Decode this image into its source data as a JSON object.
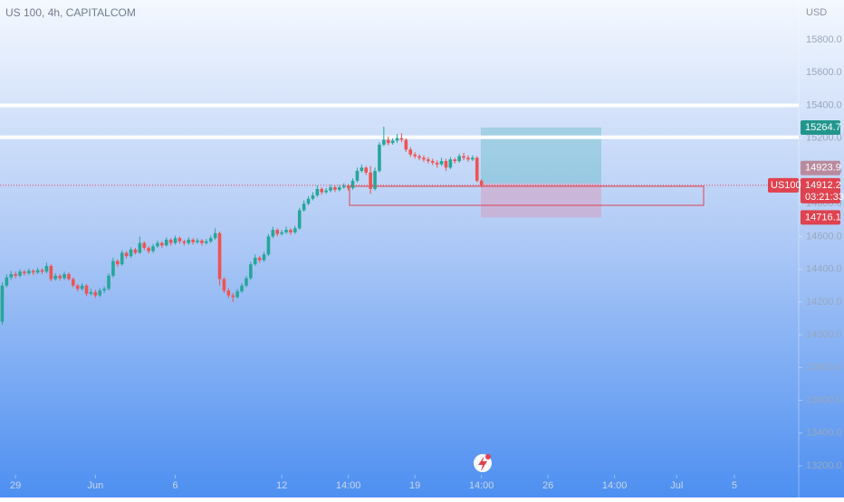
{
  "chart_data": {
    "type": "candlestick",
    "title": "US 100, 4h, CAPITALCOM",
    "currency": "USD",
    "countdown": "03:21:33",
    "xlim": [
      -0.5,
      179.5
    ],
    "xticks": [
      {
        "value": 3,
        "label": "29"
      },
      {
        "value": 21,
        "label": "Jun"
      },
      {
        "value": 39,
        "label": "6"
      },
      {
        "value": 63,
        "label": "12"
      },
      {
        "value": 78,
        "label": "14:00"
      },
      {
        "value": 93,
        "label": "19"
      },
      {
        "value": 108,
        "label": "14:00"
      },
      {
        "value": 123,
        "label": "26"
      },
      {
        "value": 138,
        "label": "14:00"
      },
      {
        "value": 152,
        "label": "Jul"
      },
      {
        "value": 165,
        "label": "5"
      }
    ],
    "ylim": [
      13145,
      16043
    ],
    "yticks": [
      {
        "value": 13200,
        "label": "13200.0"
      },
      {
        "value": 13400,
        "label": "13400.0"
      },
      {
        "value": 13600,
        "label": "13600.0"
      },
      {
        "value": 13800,
        "label": "13800.0"
      },
      {
        "value": 14000,
        "label": "14000.0"
      },
      {
        "value": 14200,
        "label": "14200.0"
      },
      {
        "value": 14400,
        "label": "14400.0"
      },
      {
        "value": 14600,
        "label": "14600.0"
      },
      {
        "value": 14800,
        "label": "14800.0"
      },
      {
        "value": 15000,
        "label": "15000.0"
      },
      {
        "value": 15200,
        "label": "15200.0"
      },
      {
        "value": 15400,
        "label": "15400.0"
      },
      {
        "value": 15600,
        "label": "15600.0"
      },
      {
        "value": 15800,
        "label": "15800.0"
      }
    ],
    "up_color": "#26a69a",
    "down_color": "#ef5350",
    "horizontal_lines": [
      15400,
      15205
    ],
    "zone": [
      14790,
      14906
    ],
    "position": {
      "target": 15264.7,
      "entry": 14923.9,
      "stop": 14716.1
    },
    "series": [
      {
        "name": "US100",
        "ohlc": [
          [
            14080,
            14320,
            14060,
            14300
          ],
          [
            14300,
            14370,
            14290,
            14350
          ],
          [
            14350,
            14390,
            14335,
            14370
          ],
          [
            14370,
            14385,
            14345,
            14360
          ],
          [
            14360,
            14400,
            14350,
            14385
          ],
          [
            14385,
            14395,
            14360,
            14375
          ],
          [
            14375,
            14405,
            14365,
            14390
          ],
          [
            14390,
            14400,
            14365,
            14380
          ],
          [
            14380,
            14410,
            14370,
            14395
          ],
          [
            14395,
            14405,
            14370,
            14385
          ],
          [
            14385,
            14440,
            14375,
            14420
          ],
          [
            14420,
            14430,
            14325,
            14340
          ],
          [
            14340,
            14375,
            14330,
            14360
          ],
          [
            14360,
            14370,
            14330,
            14345
          ],
          [
            14345,
            14385,
            14335,
            14370
          ],
          [
            14370,
            14380,
            14330,
            14340
          ],
          [
            14340,
            14350,
            14290,
            14300
          ],
          [
            14300,
            14310,
            14265,
            14280
          ],
          [
            14280,
            14315,
            14270,
            14300
          ],
          [
            14300,
            14310,
            14235,
            14250
          ],
          [
            14250,
            14280,
            14240,
            14260
          ],
          [
            14260,
            14275,
            14225,
            14240
          ],
          [
            14240,
            14285,
            14230,
            14270
          ],
          [
            14270,
            14295,
            14255,
            14280
          ],
          [
            14280,
            14375,
            14270,
            14360
          ],
          [
            14360,
            14470,
            14350,
            14450
          ],
          [
            14450,
            14460,
            14415,
            14430
          ],
          [
            14430,
            14515,
            14420,
            14500
          ],
          [
            14500,
            14510,
            14465,
            14480
          ],
          [
            14480,
            14535,
            14470,
            14520
          ],
          [
            14520,
            14530,
            14490,
            14500
          ],
          [
            14500,
            14600,
            14495,
            14560
          ],
          [
            14560,
            14570,
            14515,
            14530
          ],
          [
            14530,
            14540,
            14495,
            14510
          ],
          [
            14510,
            14555,
            14500,
            14540
          ],
          [
            14540,
            14575,
            14530,
            14560
          ],
          [
            14560,
            14570,
            14530,
            14545
          ],
          [
            14545,
            14595,
            14540,
            14580
          ],
          [
            14580,
            14590,
            14545,
            14560
          ],
          [
            14560,
            14605,
            14550,
            14590
          ],
          [
            14590,
            14600,
            14555,
            14570
          ],
          [
            14570,
            14580,
            14545,
            14560
          ],
          [
            14560,
            14595,
            14550,
            14580
          ],
          [
            14580,
            14590,
            14550,
            14565
          ],
          [
            14565,
            14590,
            14555,
            14575
          ],
          [
            14575,
            14585,
            14545,
            14560
          ],
          [
            14560,
            14585,
            14550,
            14570
          ],
          [
            14570,
            14605,
            14560,
            14590
          ],
          [
            14590,
            14650,
            14580,
            14620
          ],
          [
            14620,
            14630,
            14300,
            14340
          ],
          [
            14340,
            14350,
            14255,
            14270
          ],
          [
            14270,
            14285,
            14225,
            14240
          ],
          [
            14240,
            14255,
            14200,
            14230
          ],
          [
            14230,
            14280,
            14220,
            14265
          ],
          [
            14265,
            14315,
            14255,
            14300
          ],
          [
            14300,
            14360,
            14290,
            14345
          ],
          [
            14345,
            14445,
            14335,
            14430
          ],
          [
            14430,
            14490,
            14420,
            14470
          ],
          [
            14470,
            14480,
            14440,
            14455
          ],
          [
            14455,
            14505,
            14445,
            14490
          ],
          [
            14490,
            14615,
            14480,
            14600
          ],
          [
            14600,
            14660,
            14590,
            14640
          ],
          [
            14640,
            14650,
            14600,
            14615
          ],
          [
            14615,
            14640,
            14605,
            14625
          ],
          [
            14625,
            14660,
            14615,
            14640
          ],
          [
            14640,
            14650,
            14610,
            14625
          ],
          [
            14625,
            14665,
            14615,
            14650
          ],
          [
            14650,
            14775,
            14640,
            14760
          ],
          [
            14760,
            14820,
            14750,
            14800
          ],
          [
            14800,
            14845,
            14790,
            14830
          ],
          [
            14830,
            14870,
            14820,
            14850
          ],
          [
            14850,
            14910,
            14840,
            14890
          ],
          [
            14890,
            14900,
            14855,
            14870
          ],
          [
            14870,
            14895,
            14860,
            14880
          ],
          [
            14880,
            14915,
            14870,
            14900
          ],
          [
            14900,
            14910,
            14870,
            14885
          ],
          [
            14885,
            14915,
            14875,
            14900
          ],
          [
            14900,
            14925,
            14890,
            14910
          ],
          [
            14910,
            14920,
            14880,
            14895
          ],
          [
            14895,
            14955,
            14885,
            14940
          ],
          [
            14940,
            15020,
            14930,
            15000
          ],
          [
            15000,
            15040,
            14990,
            15020
          ],
          [
            15020,
            15030,
            14975,
            14990
          ],
          [
            14990,
            15030,
            14860,
            14890
          ],
          [
            14890,
            15020,
            14880,
            15000
          ],
          [
            15000,
            15175,
            14990,
            15160
          ],
          [
            15160,
            15270,
            15150,
            15190
          ],
          [
            15190,
            15210,
            15155,
            15170
          ],
          [
            15170,
            15200,
            15160,
            15185
          ],
          [
            15185,
            15225,
            15170,
            15200
          ],
          [
            15200,
            15230,
            15175,
            15190
          ],
          [
            15190,
            15200,
            15115,
            15130
          ],
          [
            15130,
            15145,
            15085,
            15100
          ],
          [
            15100,
            15115,
            15075,
            15090
          ],
          [
            15090,
            15100,
            15065,
            15080
          ],
          [
            15080,
            15095,
            15055,
            15070
          ],
          [
            15070,
            15085,
            15045,
            15060
          ],
          [
            15060,
            15075,
            15035,
            15050
          ],
          [
            15050,
            15065,
            15020,
            15040
          ],
          [
            15040,
            15080,
            15030,
            15060
          ],
          [
            15060,
            15075,
            15000,
            15020
          ],
          [
            15020,
            15085,
            15010,
            15070
          ],
          [
            15070,
            15080,
            15045,
            15060
          ],
          [
            15060,
            15105,
            15050,
            15090
          ],
          [
            15090,
            15110,
            15065,
            15080
          ],
          [
            15080,
            15095,
            15055,
            15070
          ],
          [
            15070,
            15095,
            15060,
            15080
          ],
          [
            15080,
            15090,
            14930,
            14940
          ],
          [
            14940,
            14950,
            14900,
            14912.2
          ]
        ]
      }
    ]
  }
}
